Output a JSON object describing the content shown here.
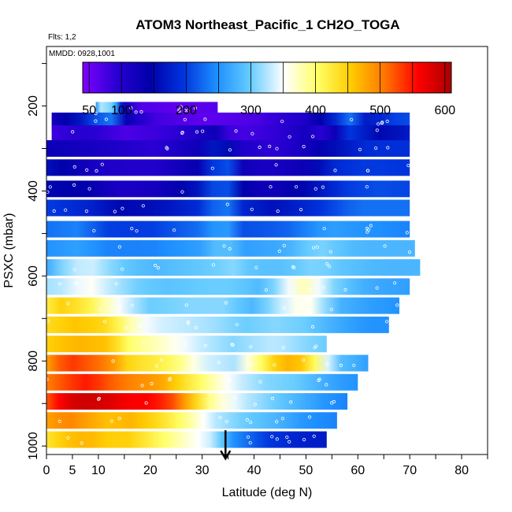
{
  "chart_data": {
    "type": "heatmap",
    "title": "ATOM3 Northeast_Pacific_1 CH2O_TOGA",
    "flights_note": "Flts: 1,2",
    "date_note": "MMDD: 0928,1001",
    "xlabel": "Latitude (deg N)",
    "ylabel": "PSXC (mbar)",
    "xlim": [
      0,
      85
    ],
    "ylim": [
      1020,
      60
    ],
    "y_inverted": true,
    "x_ticks": [
      0,
      5,
      10,
      20,
      30,
      40,
      50,
      60,
      70,
      80
    ],
    "y_ticks": [
      200,
      400,
      600,
      800,
      1000
    ],
    "colorbar": {
      "range": [
        40,
        610
      ],
      "ticks": [
        50,
        100,
        200,
        300,
        400,
        500,
        600
      ],
      "colors": [
        "#7f00ff",
        "#2a00d4",
        "#0000aa",
        "#0033dd",
        "#1e90ff",
        "#66ccff",
        "#ffffff",
        "#ffff66",
        "#ffcc00",
        "#ff7700",
        "#ff0000",
        "#aa0000"
      ]
    },
    "marker": {
      "latitude": 34.5,
      "pressure": 1000,
      "symbol": "arrow-down"
    },
    "layers": [
      {
        "p": 210,
        "x0": 9.5,
        "x1": 33,
        "v": [
          [
            9.5,
            250
          ],
          [
            10,
            330
          ],
          [
            13,
            300
          ],
          [
            15,
            120
          ],
          [
            18,
            70
          ],
          [
            25,
            60
          ],
          [
            33,
            65
          ]
        ]
      },
      {
        "p": 235,
        "x0": 1,
        "x1": 70,
        "v": [
          [
            1,
            120
          ],
          [
            8,
            180
          ],
          [
            12,
            260
          ],
          [
            14,
            150
          ],
          [
            20,
            80
          ],
          [
            30,
            60
          ],
          [
            40,
            70
          ],
          [
            50,
            110
          ],
          [
            55,
            170
          ],
          [
            58,
            240
          ],
          [
            62,
            160
          ],
          [
            66,
            200
          ],
          [
            70,
            210
          ]
        ]
      },
      {
        "p": 265,
        "x0": 1,
        "x1": 70,
        "v": [
          [
            1,
            80
          ],
          [
            8,
            100
          ],
          [
            15,
            70
          ],
          [
            25,
            90
          ],
          [
            33,
            130
          ],
          [
            36,
            70
          ],
          [
            45,
            90
          ],
          [
            50,
            120
          ],
          [
            54,
            80
          ],
          [
            58,
            200
          ],
          [
            64,
            150
          ],
          [
            70,
            170
          ]
        ]
      },
      {
        "p": 300,
        "x0": 0,
        "x1": 70,
        "v": [
          [
            0,
            130
          ],
          [
            6,
            120
          ],
          [
            12,
            110
          ],
          [
            20,
            90
          ],
          [
            30,
            130
          ],
          [
            34,
            200
          ],
          [
            36,
            110
          ],
          [
            44,
            90
          ],
          [
            50,
            120
          ],
          [
            56,
            160
          ],
          [
            62,
            190
          ],
          [
            70,
            190
          ]
        ]
      },
      {
        "p": 345,
        "x0": 0,
        "x1": 70,
        "v": [
          [
            0,
            160
          ],
          [
            6,
            130
          ],
          [
            10,
            110
          ],
          [
            20,
            100
          ],
          [
            30,
            140
          ],
          [
            34,
            250
          ],
          [
            37,
            130
          ],
          [
            42,
            110
          ],
          [
            50,
            130
          ],
          [
            56,
            190
          ],
          [
            62,
            200
          ],
          [
            70,
            195
          ]
        ]
      },
      {
        "p": 395,
        "x0": 0,
        "x1": 70,
        "v": [
          [
            0,
            150
          ],
          [
            8,
            140
          ],
          [
            14,
            110
          ],
          [
            22,
            120
          ],
          [
            30,
            170
          ],
          [
            34,
            240
          ],
          [
            37,
            150
          ],
          [
            42,
            120
          ],
          [
            50,
            150
          ],
          [
            58,
            200
          ],
          [
            64,
            210
          ],
          [
            70,
            205
          ]
        ]
      },
      {
        "p": 440,
        "x0": 0,
        "x1": 70,
        "v": [
          [
            0,
            200
          ],
          [
            8,
            180
          ],
          [
            14,
            150
          ],
          [
            22,
            160
          ],
          [
            30,
            190
          ],
          [
            34,
            250
          ],
          [
            38,
            180
          ],
          [
            44,
            160
          ],
          [
            52,
            190
          ],
          [
            60,
            230
          ],
          [
            70,
            230
          ]
        ]
      },
      {
        "p": 490,
        "x0": 0,
        "x1": 70,
        "v": [
          [
            0,
            230
          ],
          [
            6,
            240
          ],
          [
            12,
            200
          ],
          [
            20,
            200
          ],
          [
            30,
            230
          ],
          [
            34,
            270
          ],
          [
            38,
            210
          ],
          [
            46,
            220
          ],
          [
            54,
            260
          ],
          [
            62,
            250
          ],
          [
            70,
            240
          ]
        ]
      },
      {
        "p": 535,
        "x0": 0,
        "x1": 71,
        "v": [
          [
            0,
            250
          ],
          [
            6,
            260
          ],
          [
            12,
            240
          ],
          [
            20,
            240
          ],
          [
            30,
            260
          ],
          [
            34,
            300
          ],
          [
            38,
            260
          ],
          [
            46,
            270
          ],
          [
            52,
            310
          ],
          [
            60,
            280
          ],
          [
            71,
            280
          ]
        ]
      },
      {
        "p": 580,
        "x0": 0,
        "x1": 72,
        "v": [
          [
            0,
            270
          ],
          [
            4,
            320
          ],
          [
            8,
            340
          ],
          [
            14,
            300
          ],
          [
            20,
            280
          ],
          [
            26,
            290
          ],
          [
            32,
            300
          ],
          [
            36,
            310
          ],
          [
            40,
            290
          ],
          [
            46,
            290
          ],
          [
            52,
            310
          ],
          [
            58,
            290
          ],
          [
            64,
            280
          ],
          [
            72,
            280
          ]
        ]
      },
      {
        "p": 625,
        "x0": 0,
        "x1": 70,
        "v": [
          [
            0,
            320
          ],
          [
            4,
            330
          ],
          [
            8,
            360
          ],
          [
            12,
            330
          ],
          [
            18,
            300
          ],
          [
            24,
            290
          ],
          [
            30,
            300
          ],
          [
            36,
            300
          ],
          [
            42,
            280
          ],
          [
            46,
            340
          ],
          [
            50,
            380
          ],
          [
            56,
            300
          ],
          [
            62,
            270
          ],
          [
            70,
            260
          ]
        ]
      },
      {
        "p": 670,
        "x0": 0,
        "x1": 68,
        "v": [
          [
            0,
            420
          ],
          [
            3,
            450
          ],
          [
            8,
            420
          ],
          [
            12,
            370
          ],
          [
            16,
            330
          ],
          [
            20,
            300
          ],
          [
            28,
            310
          ],
          [
            34,
            310
          ],
          [
            40,
            280
          ],
          [
            46,
            340
          ],
          [
            50,
            370
          ],
          [
            56,
            280
          ],
          [
            62,
            260
          ],
          [
            68,
            250
          ]
        ]
      },
      {
        "p": 715,
        "x0": 0,
        "x1": 66,
        "v": [
          [
            0,
            440
          ],
          [
            6,
            460
          ],
          [
            12,
            440
          ],
          [
            16,
            380
          ],
          [
            20,
            340
          ],
          [
            26,
            330
          ],
          [
            32,
            320
          ],
          [
            38,
            300
          ],
          [
            44,
            310
          ],
          [
            50,
            300
          ],
          [
            56,
            270
          ],
          [
            62,
            250
          ],
          [
            66,
            250
          ]
        ]
      },
      {
        "p": 760,
        "x0": 0,
        "x1": 54,
        "v": [
          [
            0,
            450
          ],
          [
            6,
            470
          ],
          [
            12,
            460
          ],
          [
            16,
            400
          ],
          [
            20,
            380
          ],
          [
            26,
            350
          ],
          [
            30,
            330
          ],
          [
            36,
            310
          ],
          [
            44,
            330
          ],
          [
            50,
            310
          ],
          [
            54,
            300
          ]
        ]
      },
      {
        "p": 805,
        "x0": 0,
        "x1": 62,
        "v": [
          [
            0,
            480
          ],
          [
            4,
            540
          ],
          [
            8,
            520
          ],
          [
            12,
            500
          ],
          [
            16,
            440
          ],
          [
            22,
            420
          ],
          [
            26,
            390
          ],
          [
            30,
            340
          ],
          [
            36,
            320
          ],
          [
            40,
            380
          ],
          [
            44,
            450
          ],
          [
            48,
            480
          ],
          [
            52,
            400
          ],
          [
            56,
            290
          ],
          [
            62,
            260
          ]
        ]
      },
      {
        "p": 850,
        "x0": 0,
        "x1": 60,
        "v": [
          [
            0,
            500
          ],
          [
            4,
            530
          ],
          [
            8,
            550
          ],
          [
            12,
            520
          ],
          [
            16,
            500
          ],
          [
            22,
            480
          ],
          [
            26,
            440
          ],
          [
            30,
            400
          ],
          [
            36,
            340
          ],
          [
            42,
            310
          ],
          [
            48,
            300
          ],
          [
            52,
            280
          ],
          [
            56,
            260
          ],
          [
            60,
            250
          ]
        ]
      },
      {
        "p": 895,
        "x0": 0,
        "x1": 58,
        "v": [
          [
            0,
            520
          ],
          [
            4,
            580
          ],
          [
            8,
            590
          ],
          [
            12,
            580
          ],
          [
            16,
            560
          ],
          [
            20,
            560
          ],
          [
            24,
            530
          ],
          [
            28,
            460
          ],
          [
            32,
            380
          ],
          [
            38,
            330
          ],
          [
            44,
            300
          ],
          [
            50,
            270
          ],
          [
            54,
            250
          ],
          [
            58,
            240
          ]
        ]
      },
      {
        "p": 940,
        "x0": 0,
        "x1": 56,
        "v": [
          [
            0,
            480
          ],
          [
            4,
            500
          ],
          [
            8,
            480
          ],
          [
            12,
            460
          ],
          [
            16,
            470
          ],
          [
            20,
            450
          ],
          [
            24,
            420
          ],
          [
            28,
            380
          ],
          [
            32,
            330
          ],
          [
            38,
            300
          ],
          [
            44,
            280
          ],
          [
            50,
            250
          ],
          [
            56,
            240
          ]
        ]
      },
      {
        "p": 985,
        "x0": 0,
        "x1": 54,
        "v": [
          [
            0,
            430
          ],
          [
            4,
            460
          ],
          [
            8,
            470
          ],
          [
            12,
            450
          ],
          [
            16,
            450
          ],
          [
            20,
            420
          ],
          [
            24,
            390
          ],
          [
            28,
            360
          ],
          [
            32,
            330
          ],
          [
            36,
            250
          ],
          [
            42,
            200
          ],
          [
            48,
            180
          ],
          [
            54,
            170
          ]
        ]
      }
    ]
  }
}
